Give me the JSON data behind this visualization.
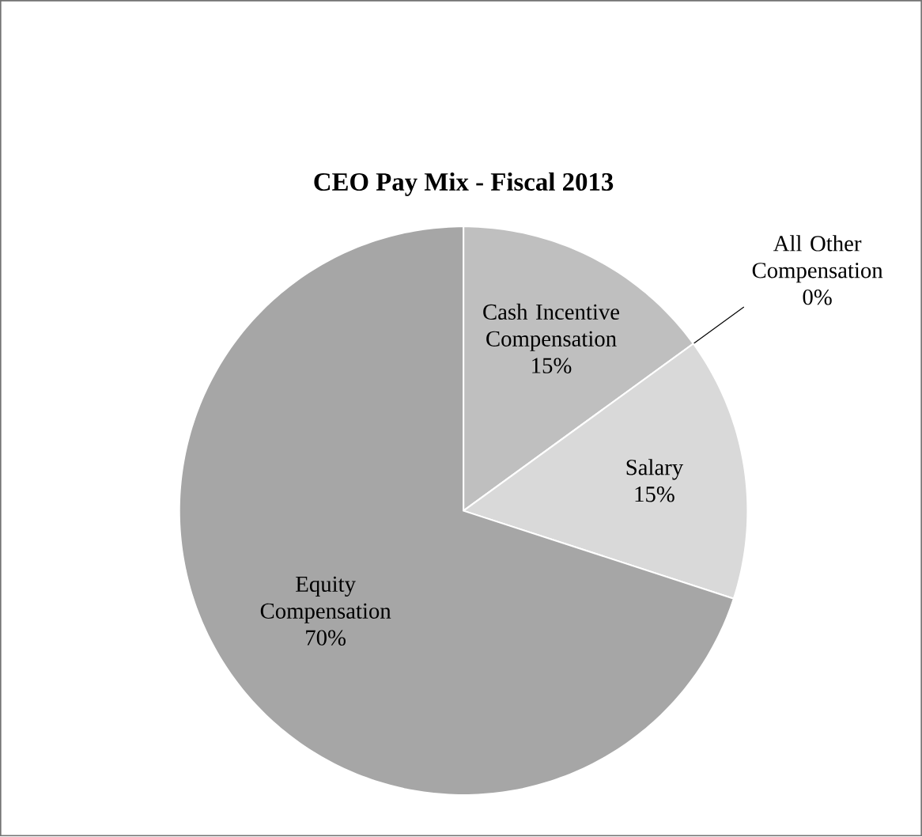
{
  "chart_data": {
    "type": "pie",
    "title": "CEO Pay Mix - Fiscal 2013",
    "categories": [
      "Cash Incentive Compensation",
      "All Other Compensation",
      "Salary",
      "Equity Compensation"
    ],
    "values": [
      15,
      0,
      15,
      70
    ],
    "value_labels": [
      "15%",
      "0%",
      "15%",
      "70%"
    ],
    "colors": [
      "#bfbfbf",
      "#c8c8c8",
      "#d9d9d9",
      "#a6a6a6"
    ]
  }
}
